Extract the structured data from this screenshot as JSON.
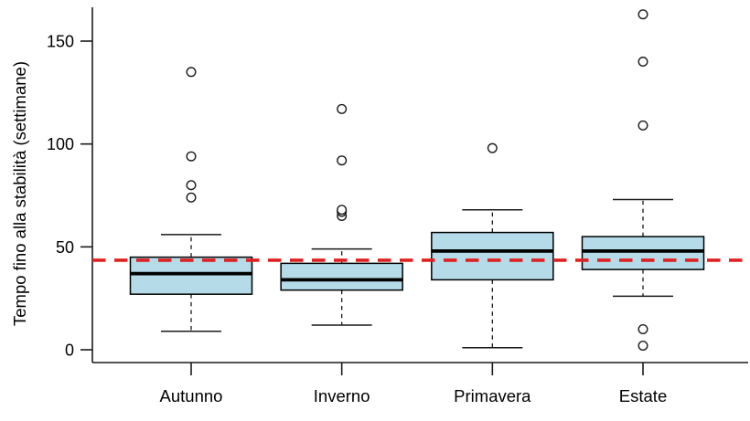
{
  "chart_data": {
    "type": "boxplot",
    "title": "",
    "xlabel": "",
    "ylabel": "Tempo fino alla stabilità (settimane)",
    "ylim": [
      -6,
      166
    ],
    "yticks": [
      0,
      50,
      100,
      150
    ],
    "grid": false,
    "legend": "none",
    "categories": [
      "Autunno",
      "Inverno",
      "Primavera",
      "Estate"
    ],
    "series": [
      {
        "category": "Autunno",
        "whisker_low": 9,
        "q1": 27,
        "median": 37,
        "q3": 45,
        "whisker_high": 56,
        "outliers": [
          74,
          80,
          94,
          135
        ]
      },
      {
        "category": "Inverno",
        "whisker_low": 12,
        "q1": 29,
        "median": 34,
        "q3": 42,
        "whisker_high": 49,
        "outliers": [
          65,
          67,
          68,
          92,
          117
        ]
      },
      {
        "category": "Primavera",
        "whisker_low": 1,
        "q1": 34,
        "median": 48,
        "q3": 57,
        "whisker_high": 68,
        "outliers": [
          98
        ]
      },
      {
        "category": "Estate",
        "whisker_low": 26,
        "q1": 39,
        "median": 48,
        "q3": 55,
        "whisker_high": 73,
        "outliers": [
          2,
          10,
          109,
          140,
          163
        ]
      }
    ],
    "reference_line": {
      "value": 43.5,
      "style": "dashed",
      "color": "#e02020"
    },
    "colors": {
      "box_fill": "#b5dbe8",
      "box_border": "#000000",
      "median": "#000000",
      "whisker": "#1a1a1a",
      "outlier_stroke": "#1a1a1a",
      "axis": "#1a1a1a",
      "background": "#ffffff"
    }
  }
}
